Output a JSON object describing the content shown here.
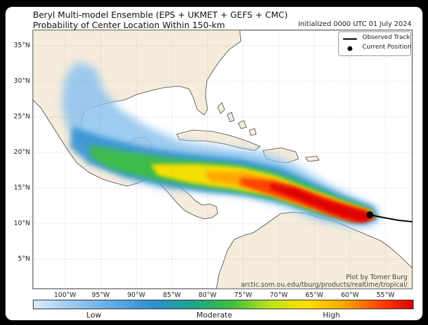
{
  "title_line1": "Beryl Multi-model Ensemble (EPS + UKMET + GEFS + CMC)",
  "title_line2": "Probability of Center Location Within 150-km",
  "initialized": "Initialized 0000 UTC 01 July 2024",
  "legend": {
    "observed_track": "Observed Track",
    "current_position": "Current Position"
  },
  "credit": {
    "line1": "Plot by Tomer Burg",
    "line2": "arctic.som.ou.edu/tburg/products/realtime/tropical/"
  },
  "colorbar": {
    "low": "Low",
    "moderate": "Moderate",
    "high": "High"
  },
  "lat_labels": [
    "35°N",
    "30°N",
    "25°N",
    "20°N",
    "15°N",
    "10°N",
    "5°N"
  ],
  "lon_labels": [
    "100°W",
    "95°W",
    "90°W",
    "85°W",
    "80°W",
    "75°W",
    "70°W",
    "65°W",
    "60°W",
    "55°W"
  ],
  "colors": {
    "ocean": "#ffffff",
    "land": "#f5ecdc",
    "track": "#000000",
    "prob_low": "#5aa8e6",
    "prob_moderate": "#ffe000",
    "prob_high": "#dd0000"
  }
}
